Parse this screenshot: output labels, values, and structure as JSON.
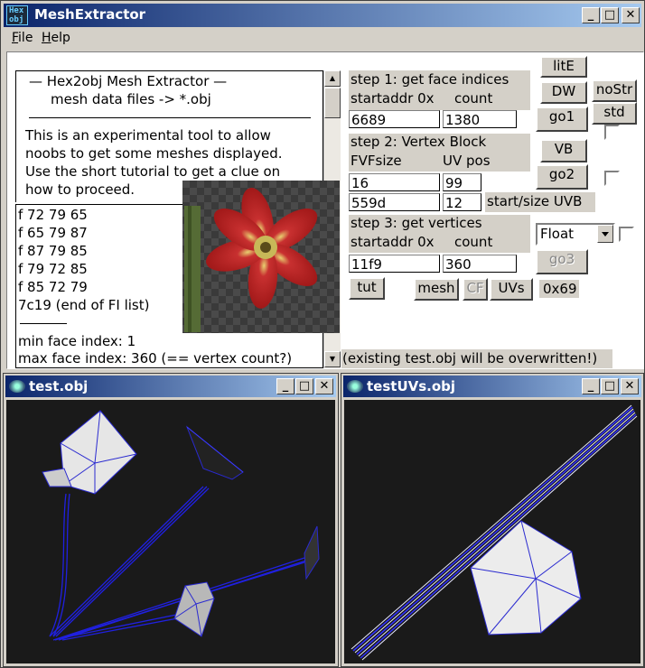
{
  "window": {
    "title": "MeshExtractor",
    "icon_text": [
      "Hex",
      "obj"
    ]
  },
  "menu": [
    {
      "label": "File"
    },
    {
      "label": "Help"
    }
  ],
  "info": {
    "lines": [
      "—   Hex2obj Mesh Extractor   —",
      "mesh data files -> *.obj",
      "This is an experimental tool to allow",
      "noobs to get some meshes displayed.",
      "Use the short tutorial to get a clue on",
      "how to proceed."
    ]
  },
  "face_list": {
    "lines": [
      "f  72 79 65",
      "f  65 79 87",
      "f  87 79 85",
      "f  79 72 85",
      "f  85 72 79",
      "7c19 (end of FI list)",
      "min face index: 1",
      "max face index: 360 (== vertex count?)"
    ]
  },
  "step1": {
    "title": "step 1: get face indices",
    "label_addr": "startaddr 0x",
    "label_count": "count",
    "addr": "6689",
    "count": "1380"
  },
  "step2": {
    "title": "step 2: Vertex Block",
    "label_fvf": "FVFsize",
    "label_uv": "UV pos",
    "fvf": "16",
    "uv": "99",
    "start": "559d",
    "size": "12",
    "label_uvb": "start/size UVB"
  },
  "step3": {
    "title": "step 3: get vertices",
    "label_addr": "startaddr 0x",
    "label_count": "count",
    "addr": "11f9",
    "count": "360",
    "format": "Float"
  },
  "buttons": {
    "litE": "litE",
    "DW": "DW",
    "noStr": "noStr",
    "std": "std",
    "go1": "go1",
    "VB": "VB",
    "go2": "go2",
    "go3": "go3",
    "tut": "tut",
    "mesh": "mesh",
    "CF": "CF",
    "UVs": "UVs"
  },
  "hex_readout": "0x69",
  "warning": "(existing test.obj will be overwritten!)",
  "child1": {
    "title": "test.obj"
  },
  "child2": {
    "title": "testUVs.obj"
  }
}
